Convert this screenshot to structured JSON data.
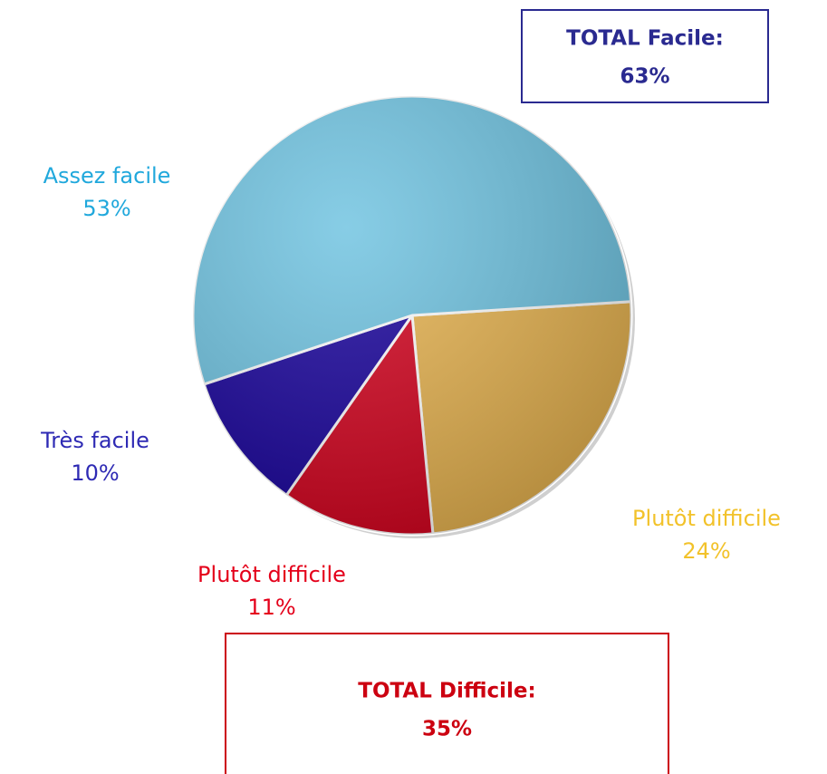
{
  "chart_data": {
    "type": "pie",
    "categories": [
      "Plutôt difficile",
      "Plutôt difficile",
      "Très facile",
      "Assez facile"
    ],
    "values": [
      24,
      11,
      10,
      53
    ],
    "value_labels": [
      "24%",
      "11%",
      "10%",
      "53%"
    ],
    "colors": [
      "#e6b24e",
      "#d2001c",
      "#16009a",
      "#6dc2e0"
    ],
    "label_colors": [
      "#f2c22a",
      "#e4001a",
      "#2e2ab4",
      "#20a8dc"
    ],
    "annotations": [
      {
        "text": "TOTAL Facile:",
        "value_label": "63%",
        "color": "#2a2a90"
      },
      {
        "text": "TOTAL Difficile:",
        "value_label": "35%",
        "color": "#cc0010"
      }
    ]
  }
}
